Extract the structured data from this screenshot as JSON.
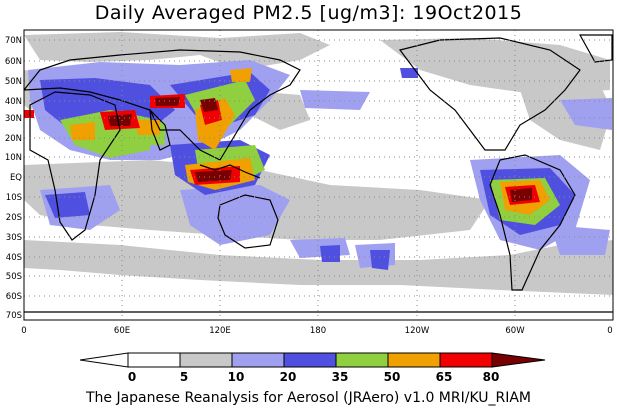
{
  "title": "Daily Averaged PM2.5 [ug/m3]: 19Oct2015",
  "footer": "The Japanese Reanalysis for Aerosol (JRAero) v1.0 MRI/KU_RIAM",
  "lat_labels": [
    "70N",
    "60N",
    "50N",
    "40N",
    "30N",
    "20N",
    "10N",
    "EQ",
    "10S",
    "20S",
    "30S",
    "40S",
    "50S",
    "60S",
    "70S"
  ],
  "lon_labels": [
    "0",
    "60E",
    "120E",
    "180",
    "120W",
    "60W",
    "0"
  ],
  "colorbar": {
    "ticks": [
      "0",
      "5",
      "10",
      "20",
      "35",
      "50",
      "65",
      "80"
    ],
    "colors": [
      "#ffffff",
      "#c8c8c8",
      "#a0a0f0",
      "#5050e0",
      "#90d040",
      "#f0a000",
      "#f00000",
      "#780000"
    ]
  }
}
